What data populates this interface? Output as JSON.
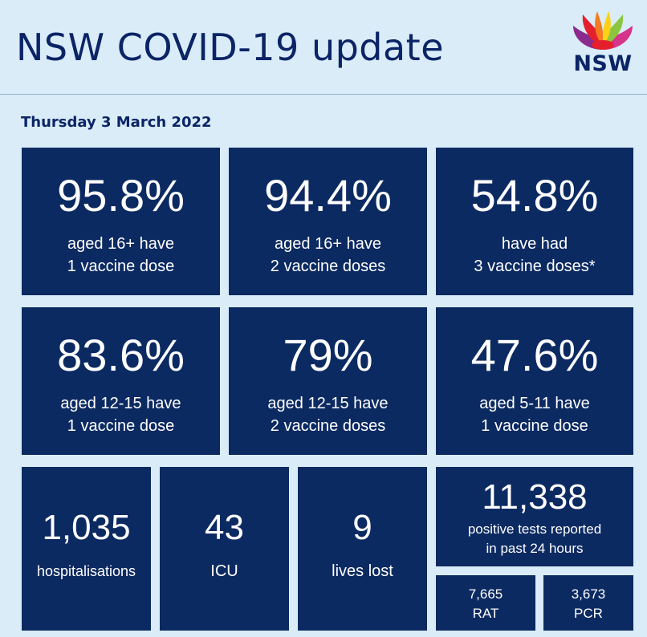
{
  "header": {
    "title": "NSW COVID-19 update",
    "logo_text": "NSW"
  },
  "date": "Thursday 3 March 2022",
  "vaccine_tiles": [
    {
      "value": "95.8%",
      "line1": "aged 16+ have",
      "line2": "1 vaccine dose"
    },
    {
      "value": "94.4%",
      "line1": "aged 16+ have",
      "line2": "2 vaccine doses"
    },
    {
      "value": "54.8%",
      "line1": "have had",
      "line2": "3 vaccine doses*"
    },
    {
      "value": "83.6%",
      "line1": "aged 12-15 have",
      "line2": "1 vaccine dose"
    },
    {
      "value": "79%",
      "line1": "aged 12-15 have",
      "line2": "2 vaccine doses"
    },
    {
      "value": "47.6%",
      "line1": "aged 5-11 have",
      "line2": "1 vaccine dose"
    }
  ],
  "stats": {
    "hospitalisations": {
      "value": "1,035",
      "label": "hospitalisations"
    },
    "icu": {
      "value": "43",
      "label": "ICU"
    },
    "deaths": {
      "value": "9",
      "label": "lives lost"
    },
    "tests": {
      "value": "11,338",
      "line1": "positive tests reported",
      "line2": "in past 24 hours"
    },
    "rat": {
      "value": "7,665",
      "label": "RAT"
    },
    "pcr": {
      "value": "3,673",
      "label": "PCR"
    }
  },
  "colors": {
    "background": "#d9ecf8",
    "tile": "#0c2a62",
    "title": "#0b2466",
    "logo_petals": [
      "#e5202e",
      "#f47b20",
      "#fcd116",
      "#8cc63f",
      "#8a2b8e",
      "#d6338a"
    ]
  }
}
